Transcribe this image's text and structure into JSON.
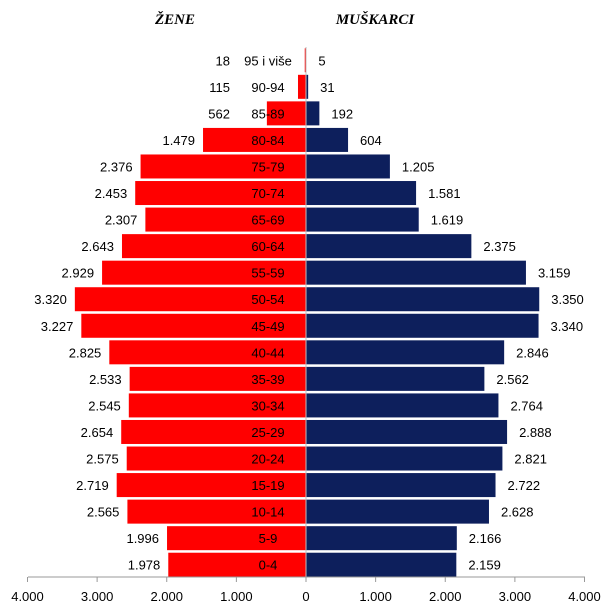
{
  "chart_data": {
    "type": "bar",
    "orientation": "horizontal",
    "categories": [
      "95 i više",
      "90-94",
      "85-89",
      "80-84",
      "75-79",
      "70-74",
      "65-69",
      "60-64",
      "55-59",
      "50-54",
      "45-49",
      "40-44",
      "35-39",
      "30-34",
      "25-29",
      "20-24",
      "15-19",
      "10-14",
      "5-9",
      "0-4"
    ],
    "series": [
      {
        "name": "ŽENE",
        "color": "#ff0000",
        "values": [
          18,
          115,
          562,
          1479,
          2376,
          2453,
          2307,
          2643,
          2929,
          3320,
          3227,
          2825,
          2533,
          2545,
          2654,
          2575,
          2719,
          2565,
          1996,
          1978
        ],
        "labels": [
          "18",
          "115",
          "562",
          "1.479",
          "2.376",
          "2.453",
          "2.307",
          "2.643",
          "2.929",
          "3.320",
          "3.227",
          "2.825",
          "2.533",
          "2.545",
          "2.654",
          "2.575",
          "2.719",
          "2.565",
          "1.996",
          "1.978"
        ]
      },
      {
        "name": "MUŠKARCI",
        "color": "#0d1f5c",
        "values": [
          5,
          31,
          192,
          604,
          1205,
          1581,
          1619,
          2375,
          3159,
          3350,
          3340,
          2846,
          2562,
          2764,
          2888,
          2821,
          2722,
          2628,
          2166,
          2159
        ],
        "labels": [
          "5",
          "31",
          "192",
          "604",
          "1.205",
          "1.581",
          "1.619",
          "2.375",
          "3.159",
          "3.350",
          "3.340",
          "2.846",
          "2.562",
          "2.764",
          "2.888",
          "2.821",
          "2.722",
          "2.628",
          "2.166",
          "2.159"
        ]
      }
    ],
    "xlim": [
      -4000,
      4000
    ],
    "xticks": [
      -4000,
      -3000,
      -2000,
      -1000,
      0,
      1000,
      2000,
      3000,
      4000
    ],
    "xtick_labels": [
      "4.000",
      "3.000",
      "2.000",
      "1.000",
      "0",
      "1.000",
      "2.000",
      "3.000",
      "4.000"
    ],
    "grid": false
  }
}
